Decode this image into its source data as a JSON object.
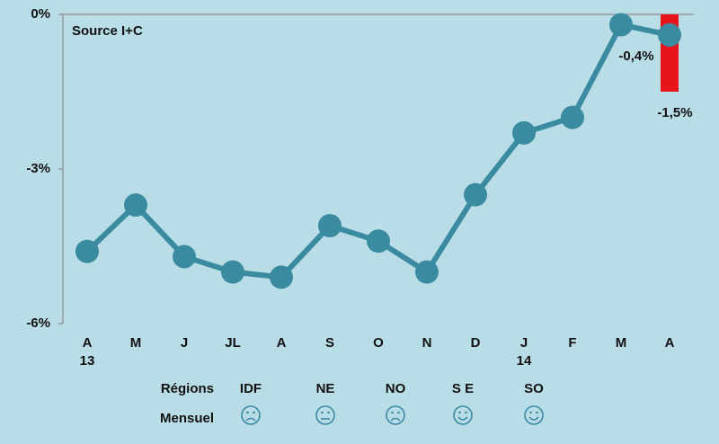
{
  "chart_data": {
    "type": "line",
    "source": "Source I+C",
    "categories": [
      "A",
      "M",
      "J",
      "JL",
      "A",
      "S",
      "O",
      "N",
      "D",
      "J",
      "F",
      "M",
      "A"
    ],
    "sublabels": [
      "13",
      null,
      null,
      null,
      null,
      null,
      null,
      null,
      null,
      "14",
      null,
      null,
      null
    ],
    "ylim": [
      -6,
      0
    ],
    "yticks": [
      {
        "value": 0,
        "label": "0%"
      },
      {
        "value": -3,
        "label": "-3%"
      },
      {
        "value": -6,
        "label": "-6%"
      }
    ],
    "series": [
      {
        "type": "bar",
        "color": "#e8141c",
        "values": [
          null,
          null,
          null,
          null,
          null,
          null,
          null,
          null,
          null,
          null,
          null,
          null,
          -1.5
        ],
        "value_labels": [
          null,
          null,
          null,
          null,
          null,
          null,
          null,
          null,
          null,
          null,
          null,
          null,
          "-1,5%"
        ]
      },
      {
        "type": "line",
        "color": "#3a8aa0",
        "values": [
          -4.6,
          -3.7,
          -4.7,
          -5.0,
          -5.1,
          -4.1,
          -4.4,
          -5.0,
          -3.5,
          -2.3,
          -2.0,
          -0.2,
          -0.4
        ],
        "value_labels": [
          null,
          null,
          null,
          null,
          null,
          null,
          null,
          null,
          null,
          null,
          null,
          null,
          "-0,4%"
        ]
      }
    ],
    "legend_rows": {
      "regions_label": "Régions",
      "monthly_label": "Mensuel",
      "regions": [
        "IDF",
        "NE",
        "NO",
        "S E",
        "SO"
      ]
    }
  }
}
